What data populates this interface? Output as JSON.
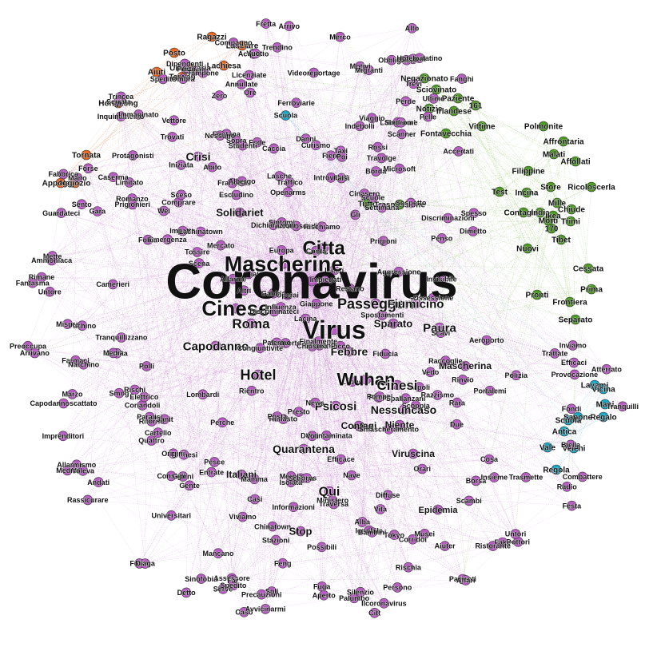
{
  "graph": {
    "hub": "Coronavirus",
    "community_colors": {
      "main": "#b85cc4",
      "green": "#4c9a1f",
      "orange": "#e8641e",
      "cyan": "#18a6c4",
      "edge_main": "#c070cc",
      "edge_green": "#6fb23a",
      "edge_orange": "#e06a2a",
      "edge_cyan": "#2aaed0"
    },
    "communities": {
      "orange": [
        "Ragazzi",
        "Posto",
        "Lasciare",
        "Lachiesa",
        "Umanitaria",
        "Aiuti",
        "Taiwan",
        "Hongkong",
        "Negozio",
        "Tornata",
        "Appoggio"
      ],
      "green": [
        "Negazionato",
        "Sciovinato",
        "Paziente",
        "Notizie",
        "Irlandese",
        "161",
        "Vittime",
        "Fontavecchia",
        "Polmonite",
        "Affrontaria",
        "Malati",
        "Affollati",
        "Filippine",
        "Store",
        "Ricoloscerla",
        "Test",
        "Incina",
        "Contagio",
        "Contagiati",
        "India",
        "Mille",
        "Morti",
        "Chiude",
        "Ikea",
        "Trimi",
        "Ospedali",
        "170",
        "Nuovi",
        "Tibet",
        "Cessata",
        "Pronti",
        "Prima",
        "Frontiera",
        "Separato",
        "Tutto",
        "Trasmissione"
      ],
      "cyan": [
        "Lavami",
        "Vicina",
        "Mani",
        "Sapone",
        "Regalo",
        "Scuola",
        "Antica",
        "Vale",
        "Veleni",
        "Regola"
      ]
    },
    "labels": [
      "Francesi",
      "Trincea",
      "Zero",
      "Pazienti",
      "Acquisto",
      "Curismo",
      "Cinasero",
      "Tossire",
      "Persono",
      "Cosa",
      "Danni",
      "Informazioni",
      "Ritorno",
      "Settimana",
      "Orari",
      "Consigli",
      "Introvabili",
      "Imprenditori",
      "Microsoft",
      "Ammoniaca",
      "Riconoscerli",
      "Facciale",
      "Fede",
      "Lasche",
      "Torinesi",
      "Medici",
      "Scoperte",
      "Decontaminata",
      "Giappone",
      "Isolata",
      "Lombardi",
      "Laboratori",
      "Mette",
      "Protagonisti",
      "Trattate",
      "Smog",
      "Crisi",
      "Albergo",
      "Preoccupa",
      "Tokyo",
      "Inviamo",
      "Abito",
      "Trevi",
      "Soli",
      "Corridoi",
      "Subito",
      "Gara",
      "Combattere",
      "Rara",
      "Capodannoscattato",
      "Serve",
      "Palumbo",
      "Cartello",
      "Vuoti",
      "Alto",
      "Forse",
      "Ristorante",
      "Possibili",
      "Vettore",
      "Fontana",
      "Solidariet",
      "Spedite",
      "Sintomi",
      "Scena",
      "Sopra",
      "Mancano",
      "Entrate",
      "Ministero",
      "Insieme",
      "Untore",
      "Travolge",
      "Scatta",
      "Dottori",
      "Chiusura",
      "Comprare",
      "Napoli",
      "Spallanzani",
      "Motivi",
      "Caccia",
      "Ignobile",
      "Radio",
      "Fobia",
      "Nave",
      "Fabbrica",
      "Fuga",
      "Spedito",
      "Stazioni",
      "Ferroviarie",
      "Annullate",
      "Voli",
      "Inutili",
      "Borsa",
      "Mascherine",
      "Citta",
      "Polli",
      "Ore",
      "Emergenza",
      "Coriandoli",
      "Impatto",
      "Sceso",
      "Discriminazioni",
      "Polizia",
      "Coronavirus",
      "Passeggeri",
      "Fiumicino",
      "Rassicurare",
      "Spostamenti",
      "Sanit",
      "Cinese",
      "Affari",
      "Caso",
      "Fretta",
      "Viaggio",
      "Porto",
      "Assessore",
      "Limitato",
      "Roma",
      "Virus",
      "Sparato",
      "Paura",
      "Altri",
      "Efficaci",
      "Precauzioni",
      "Arrivo",
      "Rimane",
      "Coppia",
      "Citt",
      "Borda",
      "Capodanno",
      "Sinofobia",
      "Migranti",
      "Openarms",
      "Fanghi",
      "Falsi",
      "Pochi",
      "Traversa",
      "Media",
      "Portalemi",
      "Inquinamento",
      "Leone",
      "Aperto",
      "Pachino",
      "Allarme",
      "Febbre",
      "Scanner",
      "Trovati",
      "Mascherina",
      "Rimasto",
      "Prigionieri",
      "Indebolli",
      "Tranquilli",
      "Ansia",
      "Efficace",
      "Hotel",
      "Dipendenti",
      "Wuhan",
      "Quattro",
      "Cinesi",
      "Farmaci",
      "Camerieri",
      "Licenziate",
      "Merola",
      "Raccoglie",
      "Accertati",
      "Finalmente",
      "Festa",
      "Perde",
      "Trendino",
      "Dichiarazioni",
      "Psicosi",
      "Rossi",
      "Nessuno",
      "Nessuncaso",
      "Provocazione",
      "Scoppia",
      "Congiuntivite",
      "Serrata",
      "Obbliga",
      "Perche",
      "Conta",
      "Contagi",
      "Niente",
      "Atterrato",
      "Voleva",
      "Escludino",
      "Pompei",
      "Romanzo",
      "Europa",
      "Scappa",
      "Razzismo",
      "Due",
      "Prigioni",
      "Arrivano",
      "Fondi",
      "Quarantena",
      "Studenti",
      "Scavi",
      "Rischia",
      "Ultimo",
      "Bambini",
      "Silenzio",
      "Aeroporto",
      "Casi",
      "Paralisi",
      "Viruscina",
      "Fiducia",
      "Aggressione",
      "Fantasma",
      "Scuole",
      "Rinvio",
      "Diaga",
      "Presto",
      "Universitari",
      "Tranquillizzano",
      "Narchino",
      "Discriminateci",
      "Guardateci",
      "Merco",
      "Italiani",
      "Gente",
      "Scambi",
      "Viviamo",
      "Sindrome",
      "Andati",
      "Origini",
      "Pelle",
      "Ossessione",
      "Caserma",
      "Chinatown",
      "Untori",
      "News",
      "Fake",
      "Picco",
      "Fiero",
      "Penso",
      "Alba",
      "Vita",
      "Qui",
      "Scuola",
      "Epidemia",
      "Videoreportage",
      "Compagno",
      "Taxi",
      "Rischiamo",
      "Lachinatown",
      "Palermo",
      "Santelli",
      "Marzo",
      "Gabbia",
      "Invisibile",
      "Rientro",
      "Giorni",
      "Sento",
      "Lacina",
      "Stop",
      "Restano",
      "Operai",
      "Pesce",
      "Vedo",
      "Detto",
      "Mano",
      "Allarmismo",
      "Biella",
      "Rischi",
      "Fai",
      "Dimetto",
      "Mercato",
      "Iniziata",
      "Influenza",
      "Mamma",
      "Mascherine",
      "Sospetto",
      "Musei",
      "Hotelpalatino",
      "Immaginato",
      "Ristorante",
      "Trasmette",
      "Gli",
      "Fobia",
      "Ilcoronavirus",
      "Avvicinarmi",
      "Ombra",
      "Impiegati",
      "Poi",
      "Smascheramento",
      "Diffuse",
      "Spesso",
      "Traffico",
      "Feng",
      "Wei",
      "Elettrico",
      "Lorns",
      "Posta",
      "Tampone",
      "Misura",
      "Aiuter"
    ]
  }
}
